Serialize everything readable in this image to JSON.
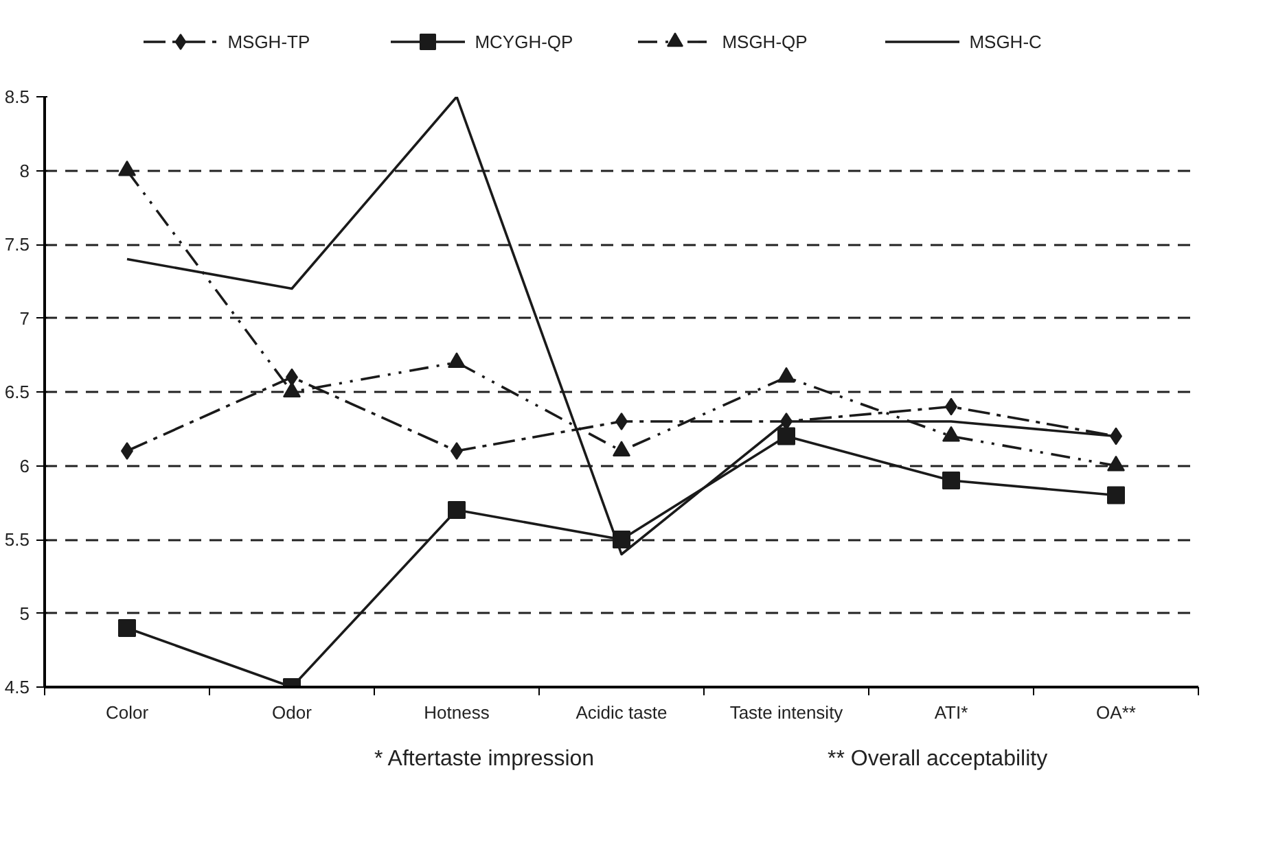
{
  "chart_data": {
    "type": "line",
    "categories": [
      "Color",
      "Odor",
      "Hotness",
      "Acidic taste",
      "Taste intensity",
      "ATI*",
      "OA**"
    ],
    "series": [
      {
        "name": "MSGH-TP",
        "color": "#1a1a1a",
        "marker": "diamond",
        "line_style": "dashed",
        "values": [
          6.1,
          6.6,
          6.1,
          6.3,
          6.3,
          6.4,
          6.2
        ]
      },
      {
        "name": "MCYGH-QP",
        "color": "#1a1a1a",
        "marker": "square",
        "line_style": "solid",
        "values": [
          4.9,
          4.5,
          5.7,
          5.5,
          6.2,
          5.9,
          5.8
        ]
      },
      {
        "name": "MSGH-QP",
        "color": "#1a1a1a",
        "marker": "triangle",
        "line_style": "dotted",
        "values": [
          8.0,
          6.5,
          6.7,
          6.1,
          6.6,
          6.2,
          6.0
        ]
      },
      {
        "name": "MSGH-C",
        "color": "#1a1a1a",
        "marker": "none",
        "line_style": "solid",
        "values": [
          7.4,
          7.2,
          8.5,
          5.4,
          6.3,
          6.3,
          6.2
        ]
      }
    ],
    "ylim": [
      4.5,
      8.5
    ],
    "yticks": [
      4.5,
      5,
      5.5,
      6,
      6.5,
      7,
      7.5,
      8,
      8.5
    ],
    "grid": "y",
    "legend": "top",
    "annotations": [
      "* Aftertaste impression",
      "** Overall acceptability"
    ]
  }
}
